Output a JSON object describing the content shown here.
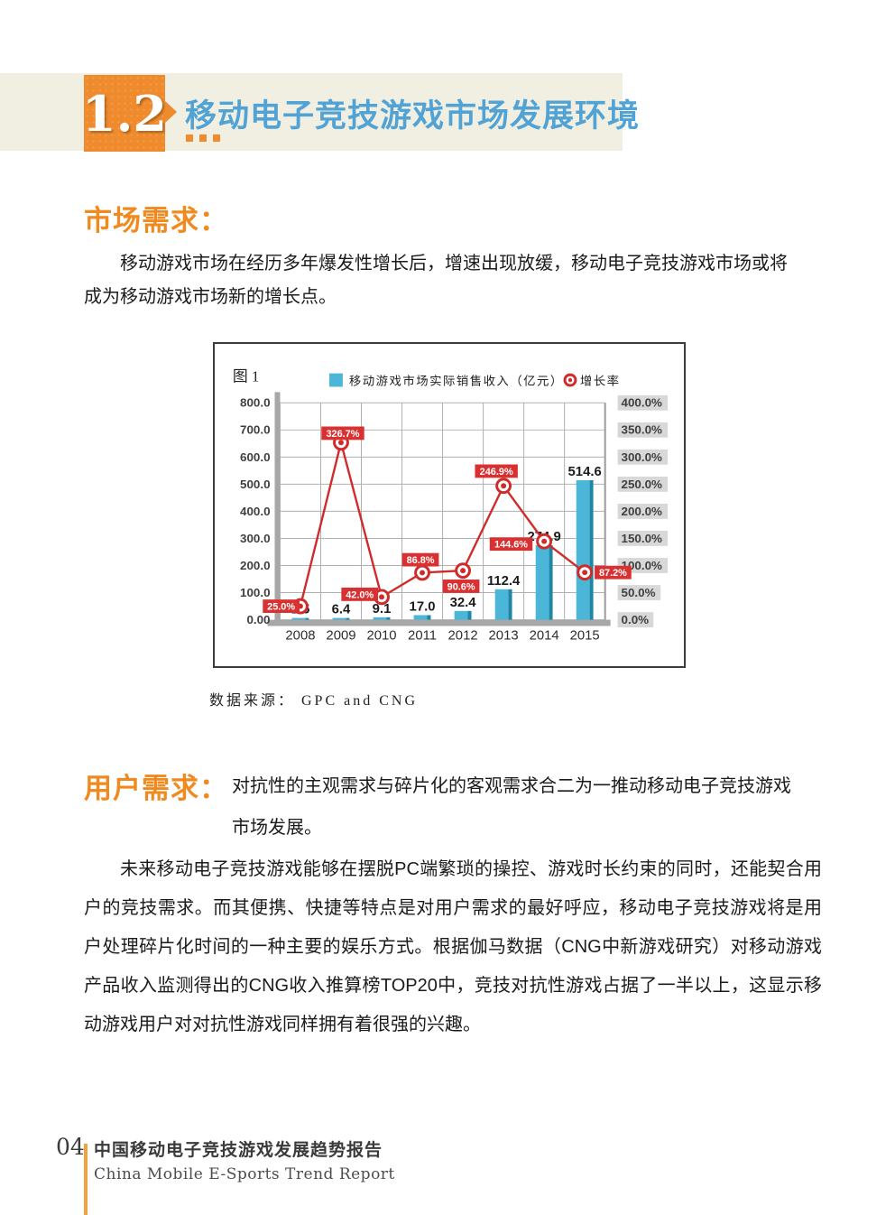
{
  "header": {
    "section_number": "1.2",
    "section_title": "移动电子竞技游戏市场发展环境"
  },
  "market_demand": {
    "heading": "市场需求：",
    "paragraph": "移动游戏市场在经历多年爆发性增长后，增速出现放缓，移动电子竞技游戏市场或将成为移动游戏市场新的增长点。"
  },
  "figure": {
    "label": "图 1",
    "source": "数据来源： GPC and CNG"
  },
  "chart_data": {
    "type": "bar+line",
    "title": "",
    "categories": [
      "2008",
      "2009",
      "2010",
      "2011",
      "2012",
      "2013",
      "2014",
      "2015"
    ],
    "series": [
      {
        "name": "移动游戏市场实际销售收入（亿元）",
        "type": "bar",
        "axis": "left",
        "color": "#4cb6d8",
        "edge_color": "#1f86a6",
        "values": [
          1.5,
          6.4,
          9.1,
          17.0,
          32.4,
          112.4,
          274.9,
          514.6
        ],
        "labels": [
          "1.5",
          "6.4",
          "9.1",
          "17.0",
          "32.4",
          "112.4",
          "274.9",
          "514.6"
        ]
      },
      {
        "name": "增长率",
        "type": "line",
        "axis": "right",
        "color": "#cf2b2b",
        "label_bg": "#d93131",
        "values": [
          25.0,
          326.7,
          42.0,
          86.8,
          90.6,
          246.9,
          144.6,
          87.2
        ],
        "labels": [
          "25.0%",
          "326.7%",
          "42.0%",
          "86.8%",
          "90.6%",
          "246.9%",
          "144.6%",
          "87.2%"
        ]
      }
    ],
    "left_axis": {
      "min": 0,
      "max": 800,
      "step": 100,
      "tick_labels": [
        "800.0",
        "700.0",
        "600.0",
        "500.0",
        "400.0",
        "300.0",
        "200.0",
        "100.0",
        "0.00"
      ]
    },
    "right_axis": {
      "min": 0,
      "max": 400,
      "step": 50,
      "tick_labels": [
        "400.0%",
        "350.0%",
        "300.0%",
        "250.0%",
        "200.0%",
        "150.0%",
        "100.0%",
        "50.0%",
        "0.0%"
      ]
    },
    "grid": true,
    "legend_position": "top"
  },
  "user_demand": {
    "heading": "用户需求：",
    "intro": "对抗性的主观需求与碎片化的客观需求合二为一推动移动电子竞技游戏市场发展。",
    "paragraph": "未来移动电子竞技游戏能够在摆脱PC端繁琐的操控、游戏时长约束的同时，还能契合用户的竞技需求。而其便携、快捷等特点是对用户需求的最好呼应，移动电子竞技游戏将是用户处理碎片化时间的一种主要的娱乐方式。根据伽马数据（CNG中新游戏研究）对移动游戏产品收入监测得出的CNG收入推算榜TOP20中，竞技对抗性游戏占据了一半以上，这显示移动游戏用户对对抗性游戏同样拥有着很强的兴趣。"
  },
  "footer": {
    "page_number": "04",
    "report_title_cn": "中国移动电子竞技游戏发展趋势报告",
    "report_title_en": "China Mobile E-Sports Trend Report"
  },
  "colors": {
    "accent_orange": "#ef8b2d",
    "heading_orange": "#f08a1f",
    "title_blue": "#51a3d6",
    "band_beige": "#f0efe2",
    "bar_blue": "#4cb6d8",
    "line_red": "#cf2b2b"
  }
}
